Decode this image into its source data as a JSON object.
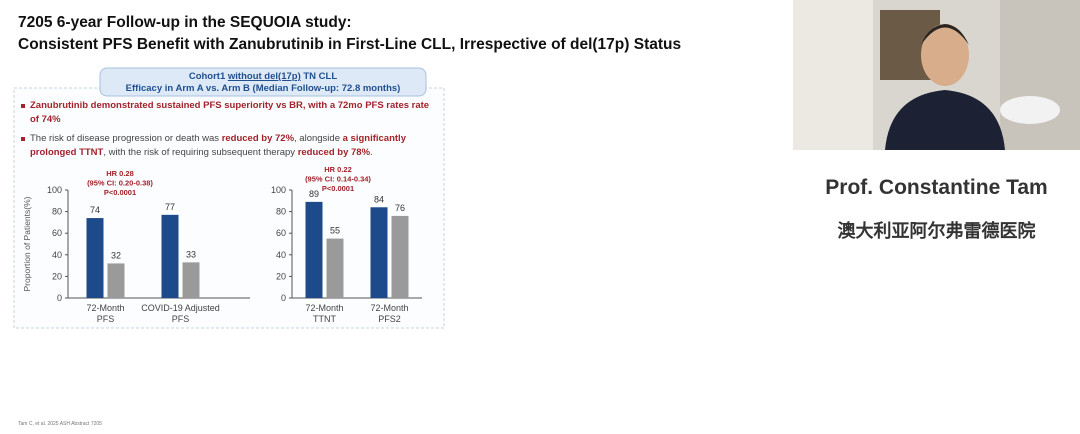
{
  "header": {
    "line1": "7205  6-year Follow-up in the SEQUOIA study:",
    "line2": "Consistent PFS Benefit with Zanubrutinib in First-Line CLL, Irrespective of del(17p) Status"
  },
  "box": {
    "line1": [
      "Cohort1 ",
      "without del(17p)",
      " TN CLL"
    ],
    "line2": "Efficacy in Arm A vs. Arm B (Median Follow-up: 72.8 months)"
  },
  "bullets": [
    [
      "Zanubrutinib demonstrated sustained PFS superiority vs BR, with a 72mo PFS rates rate of 74%"
    ],
    [
      "The risk of disease progression or death was ",
      "reduced by 72%",
      ", alongside ",
      "a significantly prolonged TTNT",
      ", with the risk of requiring subsequent therapy ",
      "reduced by 78%",
      "."
    ]
  ],
  "chart_data": [
    {
      "type": "bar",
      "y_label": "Proportion of Patients(%)",
      "categories": [
        "72-Month PFS",
        "COVID-19 Adjusted PFS"
      ],
      "series": [
        {
          "color": "#1d4a8a",
          "values": [
            74,
            77
          ]
        },
        {
          "color": "#9a9a9a",
          "values": [
            32,
            33
          ]
        }
      ],
      "ylim": [
        0,
        100
      ],
      "yticks": [
        0,
        20,
        40,
        60,
        80,
        100
      ],
      "annotations": [
        "HR 0.28",
        "(95% CI: 0.20-0.38)",
        "P<0.0001"
      ]
    },
    {
      "type": "bar",
      "categories": [
        "72-Month TTNT",
        "72-Month PFS2"
      ],
      "series": [
        {
          "color": "#1d4a8a",
          "values": [
            89,
            84
          ]
        },
        {
          "color": "#9a9a9a",
          "values": [
            55,
            76
          ]
        }
      ],
      "ylim": [
        0,
        100
      ],
      "yticks": [
        0,
        20,
        40,
        60,
        80,
        100
      ],
      "annotations": [
        "HR 0.22",
        "(95% CI: 0.14-0.34)",
        "P<0.0001"
      ]
    }
  ],
  "speaker": {
    "name": "Prof. Constantine Tam",
    "affiliation": "澳大利亚阿尔弗雷德医院"
  },
  "footnote": "Tam C, et al. 2025 ASH Abstract 7205"
}
